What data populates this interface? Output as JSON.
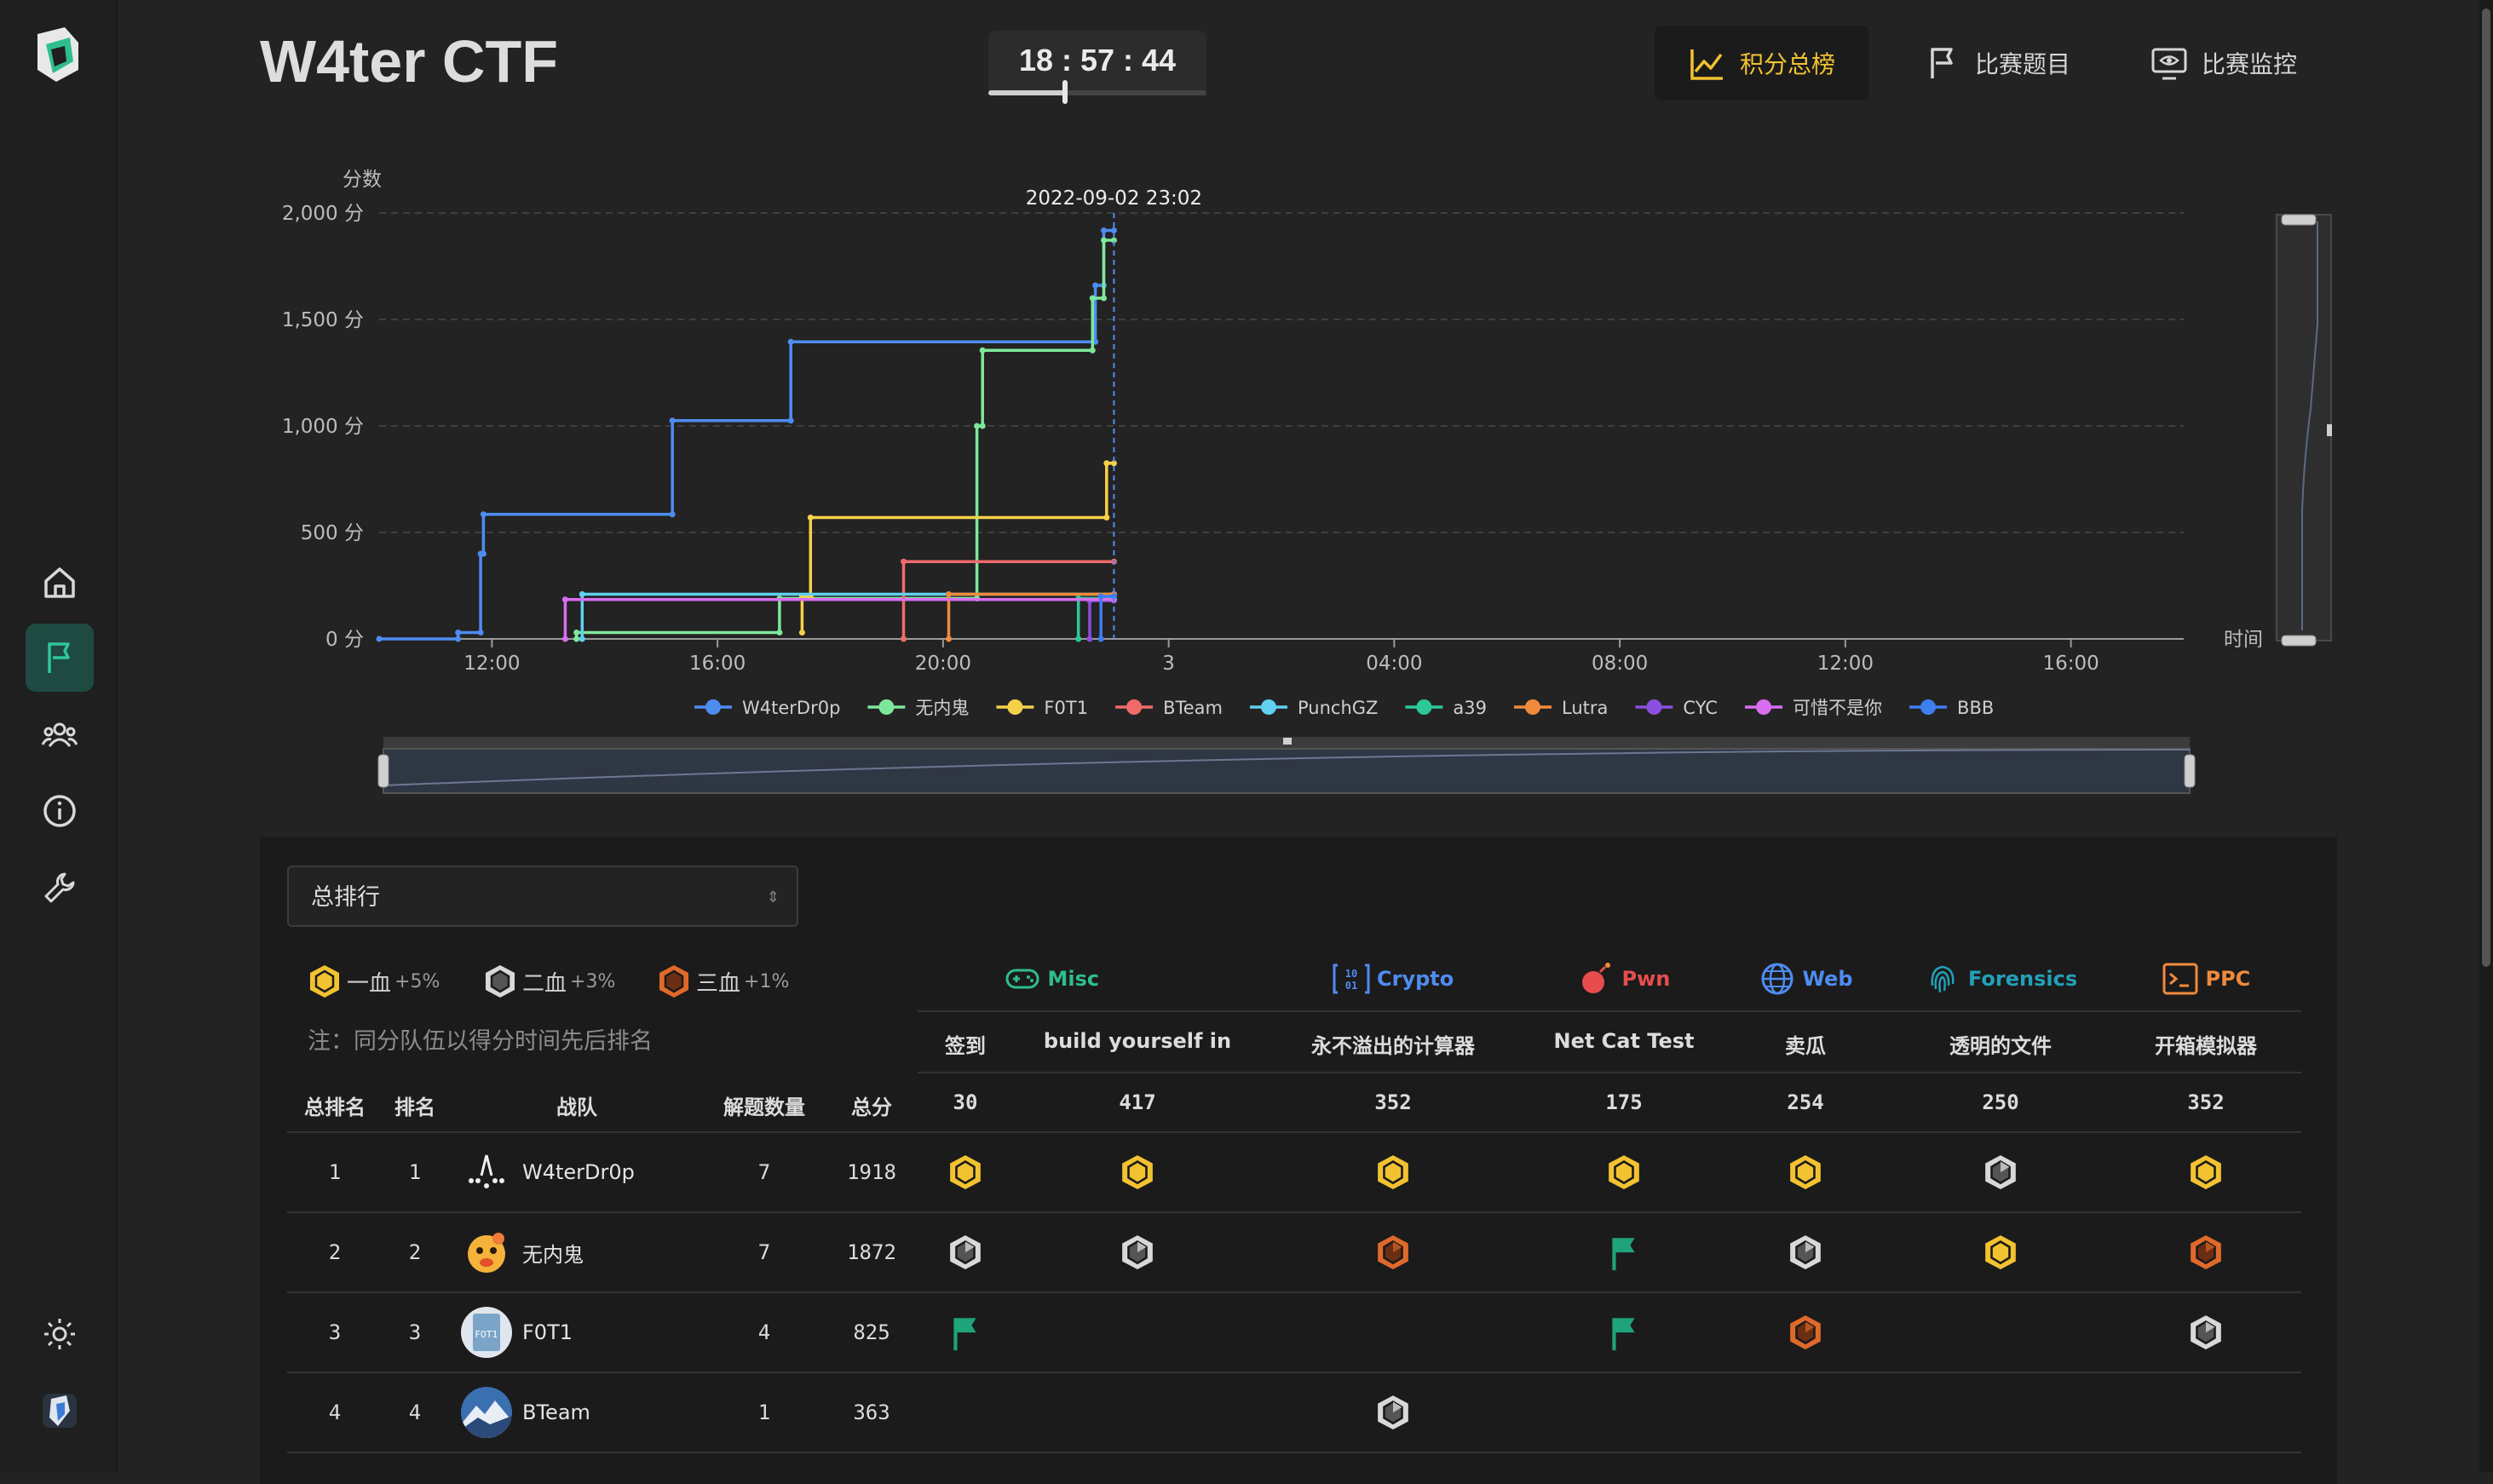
{
  "app": {
    "title": "W4ter CTF",
    "timer": "18 : 57 : 44",
    "timer_progress": 0.35
  },
  "sidebar": {
    "items": [
      {
        "icon": "home-icon"
      },
      {
        "icon": "flag-icon",
        "active": true
      },
      {
        "icon": "teams-icon"
      },
      {
        "icon": "info-icon"
      },
      {
        "icon": "wrench-icon"
      },
      {
        "icon": "theme-icon"
      },
      {
        "icon": "user-avatar-icon"
      }
    ]
  },
  "nav": {
    "scoreboard": "积分总榜",
    "challenges": "比赛题目",
    "monitor": "比赛监控"
  },
  "chart_data": {
    "type": "line",
    "step": true,
    "ylabel": "分数",
    "xlabel": "时间",
    "y_tick_labels": [
      "0 分",
      "500 分",
      "1,000 分",
      "1,500 分",
      "2,000 分"
    ],
    "ylim": [
      0,
      2000
    ],
    "x_tick_labels": [
      "12:00",
      "16:00",
      "20:00",
      "3",
      "04:00",
      "08:00",
      "12:00",
      "16:00"
    ],
    "x_unit": "hours since 2022-09-02 10:00",
    "xlim": [
      0,
      32
    ],
    "tooltip_label": "2022-09-02 23:02",
    "tooltip_x": 13.03,
    "grid": true,
    "legend_position": "bottom",
    "series": [
      {
        "name": "W4terDr0p",
        "color": "#4f8cf0",
        "points": [
          [
            0,
            0
          ],
          [
            1.4,
            0
          ],
          [
            1.4,
            30
          ],
          [
            1.8,
            30
          ],
          [
            1.8,
            400
          ],
          [
            1.85,
            400
          ],
          [
            1.85,
            585
          ],
          [
            5.2,
            585
          ],
          [
            5.2,
            1025
          ],
          [
            7.3,
            1025
          ],
          [
            7.3,
            1395
          ],
          [
            12.7,
            1395
          ],
          [
            12.7,
            1660
          ],
          [
            12.85,
            1660
          ],
          [
            12.85,
            1918
          ],
          [
            13.03,
            1918
          ]
        ]
      },
      {
        "name": "无内鬼",
        "color": "#7ee89a",
        "points": [
          [
            3.5,
            0
          ],
          [
            3.5,
            30
          ],
          [
            7.1,
            30
          ],
          [
            7.1,
            190
          ],
          [
            10.6,
            190
          ],
          [
            10.6,
            1000
          ],
          [
            10.7,
            1000
          ],
          [
            10.7,
            1355
          ],
          [
            12.65,
            1355
          ],
          [
            12.65,
            1600
          ],
          [
            12.85,
            1600
          ],
          [
            12.85,
            1872
          ],
          [
            13.03,
            1872
          ]
        ]
      },
      {
        "name": "F0T1",
        "color": "#f5d14b",
        "points": [
          [
            7.5,
            30
          ],
          [
            7.5,
            200
          ],
          [
            7.65,
            200
          ],
          [
            7.65,
            570
          ],
          [
            12.9,
            570
          ],
          [
            12.9,
            825
          ],
          [
            13.03,
            825
          ]
        ]
      },
      {
        "name": "BTeam",
        "color": "#f06a6a",
        "points": [
          [
            9.3,
            0
          ],
          [
            9.3,
            363
          ],
          [
            13.03,
            363
          ]
        ]
      },
      {
        "name": "PunchGZ",
        "color": "#5fd0f0",
        "points": [
          [
            3.6,
            0
          ],
          [
            3.6,
            210
          ],
          [
            13.03,
            210
          ]
        ]
      },
      {
        "name": "a39",
        "color": "#2ec79a",
        "points": [
          [
            12.4,
            0
          ],
          [
            12.4,
            190
          ],
          [
            13.03,
            190
          ]
        ]
      },
      {
        "name": "Lutra",
        "color": "#f08a3c",
        "points": [
          [
            10.1,
            0
          ],
          [
            10.1,
            210
          ],
          [
            13.03,
            210
          ]
        ]
      },
      {
        "name": "CYC",
        "color": "#8a4fe0",
        "points": [
          [
            12.6,
            0
          ],
          [
            12.6,
            180
          ],
          [
            13.03,
            180
          ]
        ]
      },
      {
        "name": "可惜不是你",
        "color": "#d96ef0",
        "points": [
          [
            3.3,
            0
          ],
          [
            3.3,
            185
          ],
          [
            13.03,
            185
          ]
        ]
      },
      {
        "name": "BBB",
        "color": "#3d7ef0",
        "points": [
          [
            12.8,
            0
          ],
          [
            12.8,
            200
          ],
          [
            13.03,
            200
          ]
        ]
      }
    ]
  },
  "board": {
    "select_value": "总排行",
    "legend": [
      {
        "label": "一血",
        "bonus": "+5%"
      },
      {
        "label": "二血",
        "bonus": "+3%"
      },
      {
        "label": "三血",
        "bonus": "+1%"
      }
    ],
    "note": "注：同分队伍以得分时间先后排名",
    "categories": [
      {
        "name": "Misc",
        "color": "#2ebd8c",
        "icon": "gamepad-icon"
      },
      {
        "name": "Crypto",
        "color": "#4f8cf0",
        "icon": "binary-icon"
      },
      {
        "name": "Pwn",
        "color": "#e84c4c",
        "icon": "bomb-icon"
      },
      {
        "name": "Web",
        "color": "#4f8cf0",
        "icon": "globe-icon"
      },
      {
        "name": "Forensics",
        "color": "#23a0b8",
        "icon": "fingerprint-icon"
      },
      {
        "name": "PPC",
        "color": "#f08a3c",
        "icon": "terminal-icon"
      }
    ],
    "headers": [
      "总排名",
      "排名",
      "战队",
      "解题数量",
      "总分"
    ],
    "challenges": [
      {
        "name": "签到",
        "score": "30"
      },
      {
        "name": "build yourself in",
        "score": "417"
      },
      {
        "name": "永不溢出的计算器",
        "score": "352"
      },
      {
        "name": "Net Cat Test",
        "score": "175"
      },
      {
        "name": "卖瓜",
        "score": "254"
      },
      {
        "name": "透明的文件",
        "score": "250"
      },
      {
        "name": "开箱模拟器",
        "score": "352"
      }
    ],
    "rows": [
      {
        "overall": "1",
        "rank": "1",
        "team": "W4terDr0p",
        "solved": "7",
        "score": "1918",
        "marks": [
          "gold",
          "gold",
          "gold",
          "gold",
          "gold",
          "silver",
          "gold"
        ]
      },
      {
        "overall": "2",
        "rank": "2",
        "team": "无内鬼",
        "solved": "7",
        "score": "1872",
        "marks": [
          "silver",
          "silver",
          "bronze",
          "flag",
          "silver",
          "gold",
          "bronze"
        ]
      },
      {
        "overall": "3",
        "rank": "3",
        "team": "F0T1",
        "solved": "4",
        "score": "825",
        "marks": [
          "flag",
          "",
          "",
          "flag",
          "bronze",
          "",
          "silver"
        ]
      },
      {
        "overall": "4",
        "rank": "4",
        "team": "BTeam",
        "solved": "1",
        "score": "363",
        "marks": [
          "",
          "",
          "silver",
          "",
          "",
          "",
          ""
        ]
      }
    ]
  }
}
